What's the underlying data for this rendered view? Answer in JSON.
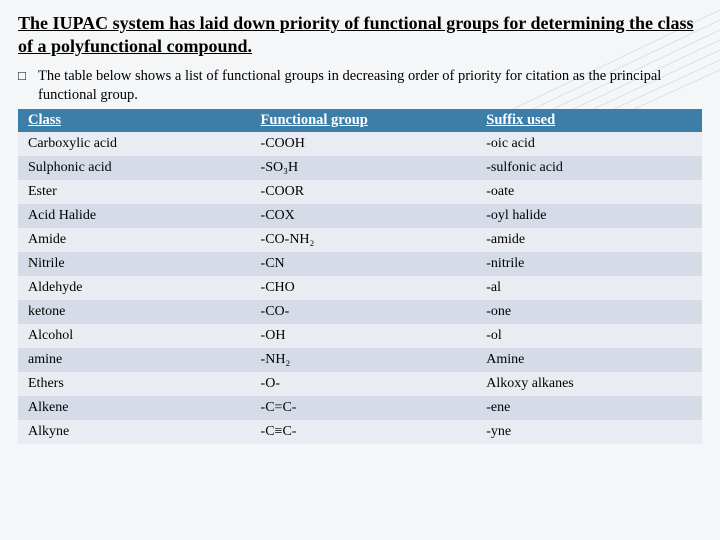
{
  "title": "The IUPAC system has laid down priority of functional groups for determining the class of a polyfunctional compound.",
  "intro": "The table below shows a list of functional groups in decreasing order of priority for citation as the principal functional group.",
  "table": {
    "columns": [
      "Class",
      "Functional group",
      "Suffix used"
    ],
    "rows": [
      [
        "Carboxylic acid",
        "-COOH",
        "-oic acid"
      ],
      [
        "Sulphonic acid",
        "-SO₃H",
        "-sulfonic acid"
      ],
      [
        "Ester",
        "-COOR",
        "-oate"
      ],
      [
        "Acid Halide",
        "-COX",
        "-oyl halide"
      ],
      [
        "Amide",
        "-CO-NH₂",
        "-amide"
      ],
      [
        "Nitrile",
        "-CN",
        "-nitrile"
      ],
      [
        "Aldehyde",
        "-CHO",
        "-al"
      ],
      [
        "ketone",
        "-CO-",
        "-one"
      ],
      [
        "Alcohol",
        "-OH",
        "-ol"
      ],
      [
        "amine",
        "-NH₂",
        "Amine"
      ],
      [
        "Ethers",
        "-O-",
        "Alkoxy alkanes"
      ],
      [
        "Alkene",
        "-C=C-",
        "-ene"
      ],
      [
        "Alkyne",
        "-C≡C-",
        "-yne"
      ]
    ],
    "header_bg": "#3d7ea8",
    "header_color": "#ffffff",
    "row_odd_bg": "#e9edf3",
    "row_even_bg": "#d5dce7",
    "font_family": "Georgia",
    "header_fontsize": 14.5,
    "cell_fontsize": 14,
    "col_widths_pct": [
      34,
      33,
      33
    ]
  },
  "background_color": "#f4f6f8",
  "decoration_line_color": "#7aa8c8"
}
